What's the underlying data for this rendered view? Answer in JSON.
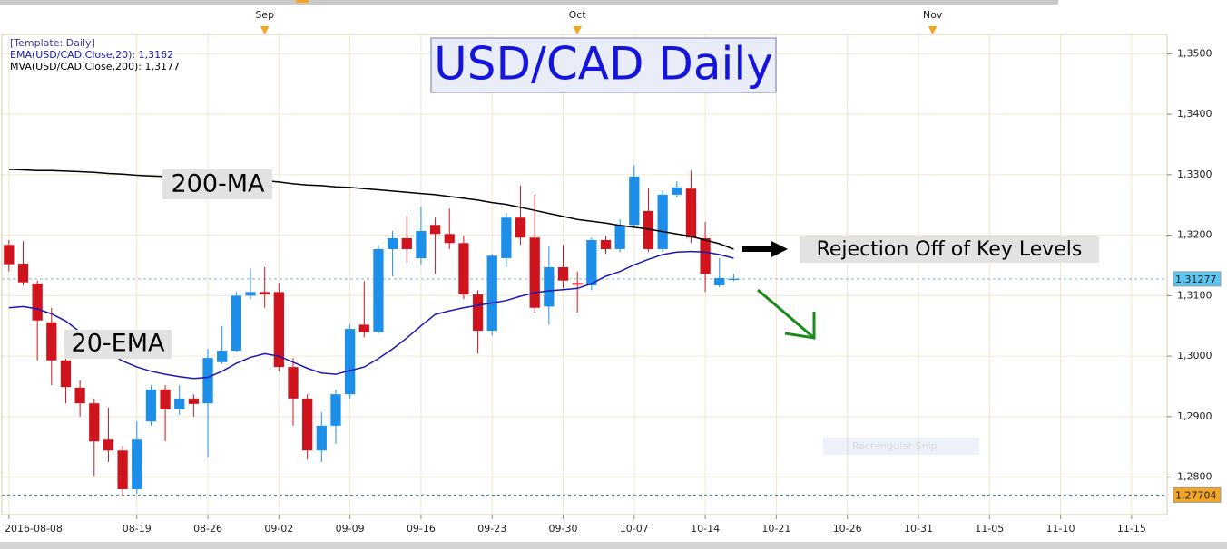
{
  "chart_data": {
    "type": "candlestick",
    "title": "USD/CAD Daily",
    "legend_header": "[Template: Daily]",
    "x": [
      "2016-08-08",
      "2016-08-09",
      "2016-08-10",
      "2016-08-11",
      "2016-08-12",
      "2016-08-15",
      "2016-08-16",
      "2016-08-17",
      "2016-08-18",
      "2016-08-19",
      "2016-08-22",
      "2016-08-23",
      "2016-08-24",
      "2016-08-25",
      "2016-08-26",
      "2016-08-29",
      "2016-08-30",
      "2016-08-31",
      "2016-09-01",
      "2016-09-02",
      "2016-09-05",
      "2016-09-06",
      "2016-09-07",
      "2016-09-08",
      "2016-09-09",
      "2016-09-12",
      "2016-09-13",
      "2016-09-14",
      "2016-09-15",
      "2016-09-16",
      "2016-09-19",
      "2016-09-20",
      "2016-09-21",
      "2016-09-22",
      "2016-09-23",
      "2016-09-26",
      "2016-09-27",
      "2016-09-28",
      "2016-09-29",
      "2016-09-30",
      "2016-10-03",
      "2016-10-04",
      "2016-10-05",
      "2016-10-06",
      "2016-10-07",
      "2016-10-10",
      "2016-10-11",
      "2016-10-12",
      "2016-10-13",
      "2016-10-14",
      "2016-10-17",
      "2016-10-18"
    ],
    "open": [
      1.3184,
      1.3153,
      1.312,
      1.3056,
      1.2993,
      1.2948,
      1.2922,
      1.2862,
      1.2844,
      1.278,
      1.2892,
      1.2945,
      1.2912,
      1.293,
      1.2922,
      1.299,
      1.3009,
      1.31,
      1.3106,
      1.3106,
      1.2982,
      1.293,
      1.2844,
      1.2885,
      1.2937,
      1.3052,
      1.304,
      1.3177,
      1.3195,
      1.3162,
      1.3217,
      1.3202,
      1.3187,
      1.3102,
      1.3042,
      1.3162,
      1.3229,
      1.3196,
      1.3082,
      1.3147,
      1.3121,
      1.3117,
      1.3192,
      1.3177,
      1.3217,
      1.324,
      1.3177,
      1.3267,
      1.3277,
      1.3195,
      1.3117,
      1.3126
    ],
    "high": [
      1.3192,
      1.319,
      1.3125,
      1.308,
      1.2997,
      1.296,
      1.293,
      1.2915,
      1.2852,
      1.2892,
      1.2952,
      1.2952,
      1.2952,
      1.2937,
      1.3012,
      1.305,
      1.3106,
      1.3145,
      1.3147,
      1.3121,
      1.2997,
      1.2937,
      1.2907,
      1.2945,
      1.3052,
      1.3124,
      1.3184,
      1.3207,
      1.3232,
      1.3247,
      1.3229,
      1.3244,
      1.3199,
      1.3109,
      1.3169,
      1.3237,
      1.3282,
      1.3267,
      1.3181,
      1.3184,
      1.314,
      1.3196,
      1.3199,
      1.3226,
      1.3316,
      1.3277,
      1.3274,
      1.3289,
      1.3307,
      1.3222,
      1.3162,
      1.3136
    ],
    "low": [
      1.314,
      1.3117,
      1.2993,
      1.2952,
      1.2922,
      1.29,
      1.2802,
      1.2825,
      1.277,
      1.2772,
      1.2885,
      1.2859,
      1.2903,
      1.29,
      1.2832,
      1.2987,
      1.3007,
      1.3094,
      1.308,
      1.2975,
      1.2885,
      1.2829,
      1.2825,
      1.2855,
      1.293,
      1.3031,
      1.3037,
      1.3132,
      1.3154,
      1.3151,
      1.3136,
      1.3177,
      1.3094,
      1.3004,
      1.3034,
      1.3147,
      1.3184,
      1.3072,
      1.3052,
      1.3112,
      1.3072,
      1.3109,
      1.3169,
      1.3172,
      1.3214,
      1.3172,
      1.3172,
      1.3262,
      1.3187,
      1.3106,
      1.3114,
      1.3124
    ],
    "close": [
      1.3152,
      1.3122,
      1.3059,
      1.2993,
      1.2949,
      1.2922,
      1.2859,
      1.2844,
      1.278,
      1.2862,
      1.2945,
      1.2912,
      1.293,
      1.2921,
      1.2997,
      1.3009,
      1.31,
      1.3106,
      1.3102,
      1.2982,
      1.293,
      1.2844,
      1.2885,
      1.2937,
      1.3045,
      1.304,
      1.3177,
      1.3195,
      1.3177,
      1.3207,
      1.3202,
      1.3187,
      1.3102,
      1.3042,
      1.3166,
      1.3229,
      1.3196,
      1.308,
      1.3147,
      1.3125,
      1.3118,
      1.3192,
      1.3177,
      1.3217,
      1.3297,
      1.3177,
      1.3267,
      1.3279,
      1.3196,
      1.3136,
      1.3129,
      1.3128
    ],
    "up_color": "#1e8fe8",
    "down_color": "#d0141e",
    "series": [
      {
        "name": "EMA(USD/CAD.Close,20): 1,3162",
        "color": "#1a1ab0",
        "values": [
          1.308,
          1.3082,
          1.3078,
          1.307,
          1.3058,
          1.304,
          1.3022,
          1.3006,
          1.2992,
          1.2982,
          1.2975,
          1.297,
          1.2966,
          1.2963,
          1.2965,
          1.2975,
          1.2988,
          1.2998,
          1.3004,
          1.3,
          1.299,
          1.298,
          1.2972,
          1.297,
          1.2976,
          1.2982,
          1.2996,
          1.3012,
          1.303,
          1.305,
          1.3069,
          1.3075,
          1.308,
          1.3084,
          1.3088,
          1.3092,
          1.3099,
          1.3105,
          1.3108,
          1.311,
          1.3112,
          1.312,
          1.3132,
          1.314,
          1.3151,
          1.316,
          1.3168,
          1.3172,
          1.3173,
          1.3172,
          1.3168,
          1.3162
        ]
      },
      {
        "name": "MVA(USD/CAD.Close,200): 1,3177",
        "color": "#000000",
        "values": [
          1.3309,
          1.3308,
          1.3307,
          1.3307,
          1.3306,
          1.3305,
          1.3304,
          1.3302,
          1.3301,
          1.3299,
          1.3298,
          1.3297,
          1.3296,
          1.3295,
          1.3293,
          1.3292,
          1.3291,
          1.3291,
          1.329,
          1.3288,
          1.3285,
          1.3283,
          1.3282,
          1.328,
          1.3279,
          1.3277,
          1.3275,
          1.3273,
          1.3271,
          1.3269,
          1.3267,
          1.3264,
          1.3261,
          1.3258,
          1.3254,
          1.3251,
          1.3246,
          1.3241,
          1.3236,
          1.3231,
          1.3226,
          1.3223,
          1.322,
          1.3216,
          1.3213,
          1.321,
          1.3206,
          1.3202,
          1.3198,
          1.3192,
          1.3186,
          1.3177
        ]
      }
    ],
    "ylim": [
      1.2738,
      1.3532
    ],
    "yticks": [
      {
        "value": 1.28,
        "label": "1,2800"
      },
      {
        "value": 1.29,
        "label": "1,2900"
      },
      {
        "value": 1.3,
        "label": "1,3000"
      },
      {
        "value": 1.31,
        "label": "1,3100"
      },
      {
        "value": 1.32,
        "label": "1,3200"
      },
      {
        "value": 1.33,
        "label": "1,3300"
      },
      {
        "value": 1.34,
        "label": "1,3400"
      },
      {
        "value": 1.35,
        "label": "1,3500"
      }
    ],
    "xlim": [
      "2016-08-08",
      "2016-11-17"
    ],
    "xticks": [
      "2016-08-08",
      {
        "value": "2016-08-19",
        "label": "08-19"
      },
      {
        "value": "2016-08-26",
        "label": "08-26"
      },
      {
        "value": "2016-09-02",
        "label": "09-02"
      },
      {
        "value": "2016-09-09",
        "label": "09-09"
      },
      {
        "value": "2016-09-16",
        "label": "09-16"
      },
      {
        "value": "2016-09-23",
        "label": "09-23"
      },
      {
        "value": "2016-09-30",
        "label": "09-30"
      },
      {
        "value": "2016-10-07",
        "label": "10-07"
      },
      {
        "value": "2016-10-14",
        "label": "10-14"
      },
      {
        "value": "2016-10-21",
        "label": "10-21"
      },
      {
        "value": "2016-10-26",
        "label": "10-26"
      },
      {
        "value": "2016-10-31",
        "label": "10-31"
      },
      {
        "value": "2016-11-05",
        "label": "11-05"
      },
      {
        "value": "2016-11-10",
        "label": "11-10"
      },
      {
        "value": "2016-11-15",
        "label": "11-15"
      }
    ],
    "top_ticks": [
      {
        "value": "2016-09-01",
        "label": "Sep"
      },
      {
        "value": "2016-10-03",
        "label": "Oct"
      },
      {
        "value": "2016-11-01",
        "label": "Nov"
      }
    ],
    "price_markers": [
      {
        "value": 1.31277,
        "label": "1,31277",
        "color": "#5cc6f2"
      },
      {
        "value": 1.27704,
        "label": "1,27704",
        "color": "#f5a623"
      }
    ],
    "grid": true,
    "annotations": [
      "200-MA",
      "20-EMA",
      "Rejection Off of Key Levels",
      "Rectangular Snip"
    ]
  }
}
